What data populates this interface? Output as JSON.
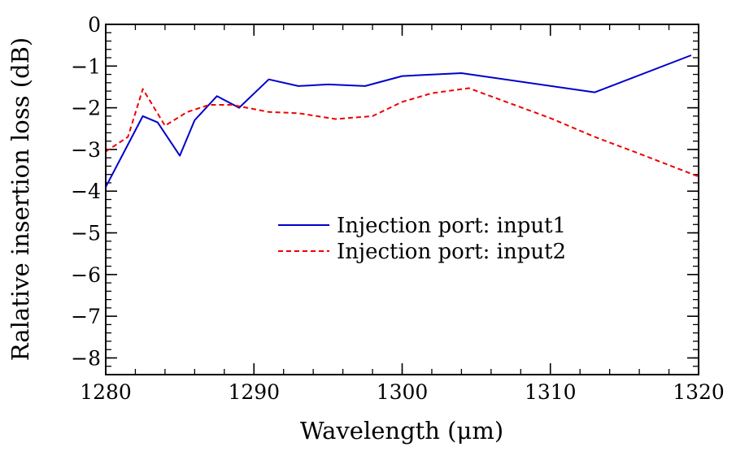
{
  "chart_data": {
    "type": "line",
    "title": "",
    "xlabel": "Wavelength (μm)",
    "ylabel": "Ralative insertion loss (dB)",
    "xlim": [
      1280,
      1320
    ],
    "ylim": [
      -8.4,
      0
    ],
    "x_ticks": [
      1280,
      1290,
      1300,
      1310,
      1320
    ],
    "x_tick_labels": [
      "1280",
      "1290",
      "1300",
      "1310",
      "1320"
    ],
    "y_ticks": [
      0,
      -1,
      -2,
      -3,
      -4,
      -5,
      -6,
      -7,
      -8
    ],
    "y_tick_labels": [
      "0",
      "−1",
      "−2",
      "−3",
      "−4",
      "−5",
      "−6",
      "−7",
      "−8"
    ],
    "x_minor_step": 2,
    "y_minor_step": 0.2,
    "grid": false,
    "legend_position": "center-right",
    "series": [
      {
        "name": "Injection port: input1",
        "color": "#0000cc",
        "style": "solid",
        "x": [
          1280,
          1282.5,
          1283.5,
          1285,
          1286,
          1287.5,
          1289,
          1291,
          1293,
          1295,
          1297.5,
          1300,
          1304,
          1313,
          1319.5
        ],
        "y": [
          -3.9,
          -2.2,
          -2.35,
          -3.15,
          -2.3,
          -1.72,
          -2.0,
          -1.32,
          -1.48,
          -1.44,
          -1.48,
          -1.24,
          -1.17,
          -1.63,
          -0.74
        ]
      },
      {
        "name": "Injection port: input2",
        "color": "#ee0000",
        "style": "dashed",
        "x": [
          1280,
          1281.5,
          1282.5,
          1284,
          1285.5,
          1287,
          1288.5,
          1291,
          1293,
          1295.5,
          1298,
          1300,
          1302,
          1304.5,
          1310,
          1313,
          1316,
          1320
        ],
        "y": [
          -3.05,
          -2.7,
          -1.55,
          -2.43,
          -2.1,
          -1.93,
          -1.93,
          -2.1,
          -2.13,
          -2.27,
          -2.2,
          -1.86,
          -1.65,
          -1.53,
          -2.25,
          -2.7,
          -3.1,
          -3.65
        ]
      }
    ]
  }
}
